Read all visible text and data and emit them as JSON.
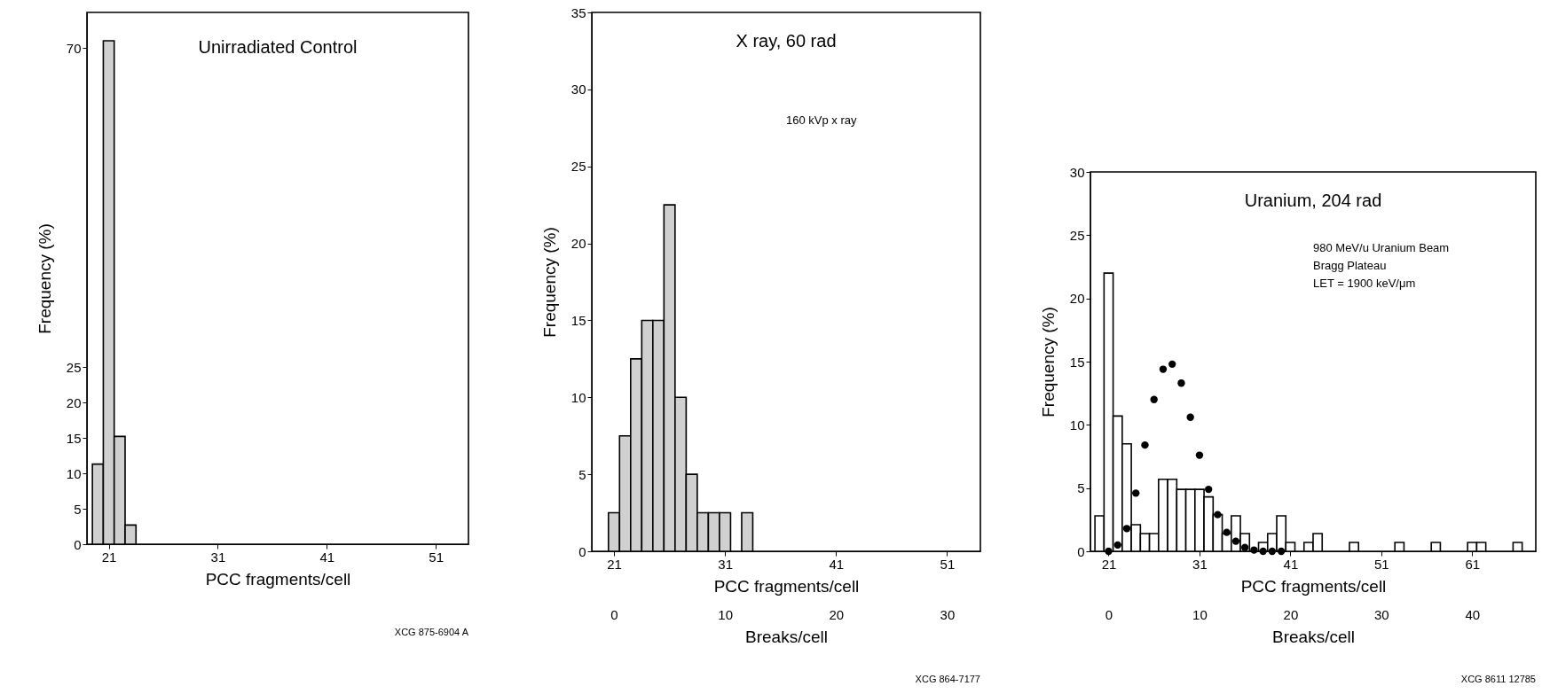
{
  "chart_data": [
    {
      "type": "histogram",
      "title": "Unirradiated Control",
      "xlabel": "PCC fragments/cell",
      "ylabel": "Frequency (%)",
      "bins": [
        19.5,
        20.5,
        21.5,
        22.5,
        23.5
      ],
      "values": [
        11.3,
        71,
        15.2,
        2.7
      ],
      "color": "#d0d0d0",
      "xlim": [
        19,
        54
      ],
      "xticks": [
        21,
        31,
        41,
        51
      ],
      "ylim": [
        0,
        75
      ],
      "yticks": [
        0,
        5,
        10,
        15,
        20,
        25,
        70
      ],
      "annotations": [
        "XCG 875-6904 A"
      ]
    },
    {
      "type": "histogram",
      "title": "X ray, 60 rad",
      "xlabel": "PCC fragments/cell",
      "ylabel": "Frequency (%)",
      "x2label": "Breaks/cell",
      "bins": [
        20.5,
        21.5,
        22.5,
        23.5,
        24.5,
        25.5,
        26.5,
        27.5,
        28.5,
        29.5,
        30.5,
        31.5,
        32.5,
        33.5
      ],
      "values": [
        2.5,
        7.5,
        12.5,
        15,
        15,
        22.5,
        10,
        5,
        2.5,
        2.5,
        2.5,
        0,
        2.5
      ],
      "color": "#d0d0d0",
      "xlim": [
        19,
        54
      ],
      "xticks": [
        21,
        31,
        41,
        51
      ],
      "x2lim": [
        -2,
        33
      ],
      "x2ticks": [
        0,
        10,
        20,
        30
      ],
      "ylim": [
        0,
        35
      ],
      "yticks": [
        0,
        5,
        10,
        15,
        20,
        25,
        30,
        35
      ],
      "annotations": [
        "160 kVp x ray",
        "XCG 864-7177"
      ]
    },
    {
      "type": "histogram",
      "title": "Uranium, 204 rad",
      "xlabel": "PCC fragments/cell",
      "ylabel": "Frequency (%)",
      "x2label": "Breaks/cell",
      "marker": "circle",
      "series": [
        {
          "color": "#ffffff",
          "bins": [
            19.5,
            20.5,
            21.5,
            22.5,
            23.5,
            24.5,
            25.5,
            26.5,
            27.5,
            28.5,
            29.5,
            30.5,
            31.5,
            32.5,
            33.5,
            34.5,
            35.5,
            36.5,
            37.5,
            38.5,
            39.5,
            40.5,
            41.5,
            42.5,
            43.5,
            44.5,
            45.5,
            46.5,
            47.5,
            48.5,
            49.5,
            50.5,
            51.5,
            52.5,
            53.5,
            54.5,
            55.5,
            56.5,
            57.5,
            58.5,
            59.5,
            60.5,
            61.5,
            62.5,
            63.5,
            64.5,
            65.5,
            66.5
          ],
          "values": [
            2.8,
            22,
            10.7,
            8.5,
            2.1,
            1.4,
            1.4,
            5.7,
            5.7,
            4.9,
            4.9,
            4.9,
            4.3,
            2.9,
            1.4,
            2.8,
            1.4,
            0,
            0.7,
            1.4,
            2.8,
            0.7,
            0,
            0.7,
            1.4,
            0,
            0,
            0,
            0.7,
            0,
            0,
            0,
            0,
            0.7,
            0,
            0,
            0,
            0.7,
            0,
            0,
            0,
            0.7,
            0.7,
            0,
            0,
            0,
            0.7
          ]
        },
        {
          "type": "scatter",
          "color": "#000000",
          "x": [
            21,
            22,
            23,
            24,
            25,
            26,
            27,
            28,
            29,
            30,
            31,
            32,
            33,
            34,
            35,
            36,
            37,
            38,
            39,
            40
          ],
          "values": [
            0,
            0.5,
            1.8,
            4.6,
            8.4,
            12.0,
            14.4,
            14.8,
            13.3,
            10.6,
            7.6,
            4.9,
            2.9,
            1.5,
            0.8,
            0.3,
            0.1,
            0,
            0,
            0
          ]
        }
      ],
      "xlim": [
        19,
        68
      ],
      "xticks": [
        21,
        31,
        41,
        51,
        61
      ],
      "x2lim": [
        -2,
        47
      ],
      "x2ticks": [
        0,
        10,
        20,
        30,
        40
      ],
      "ylim": [
        0,
        30
      ],
      "yticks": [
        0,
        5,
        10,
        15,
        20,
        25,
        30
      ],
      "annotations": [
        "980 MeV/u Uranium Beam",
        "Bragg Plateau",
        "LET = 1900 keV/μm",
        "XCG 8611 12785"
      ]
    }
  ]
}
